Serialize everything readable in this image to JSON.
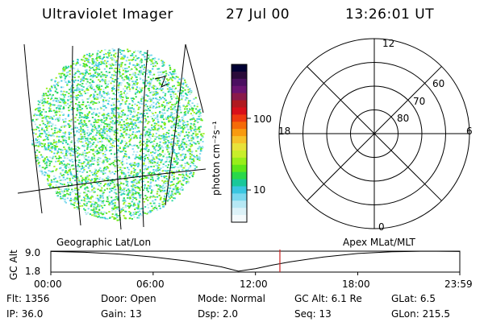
{
  "header": {
    "instrument": "Ultraviolet Imager",
    "date": "27 Jul 00",
    "time": "13:26:01 UT"
  },
  "colorbar": {
    "unit_label": "photon cm⁻²s⁻¹",
    "ticks": [
      "100",
      "10"
    ],
    "colors": [
      "#000033",
      "#2a0b3a",
      "#4b1060",
      "#6a1470",
      "#8a1a4a",
      "#b01a20",
      "#d8101a",
      "#ee3a10",
      "#f56a08",
      "#f89a10",
      "#f6c22a",
      "#e8e23a",
      "#c8ee2a",
      "#98ee1a",
      "#5ee61a",
      "#2ad84a",
      "#1ac89a",
      "#3ac6e0",
      "#7ad8ee",
      "#b6e8f4",
      "#dcf2f8",
      "#f4fafc"
    ]
  },
  "polar_plot": {
    "mlt_labels": {
      "top": "12",
      "left": "18",
      "right": "6",
      "bottom": "0"
    },
    "lat_labels": [
      "60",
      "70",
      "80"
    ]
  },
  "timeline": {
    "left_title": "Geographic Lat/Lon",
    "right_title": "Apex MLat/MLT",
    "ylabel": "GC Alt",
    "yticks": [
      "9.0",
      "1.8"
    ],
    "xticks": [
      "00:00",
      "06:00",
      "12:00",
      "18:00",
      "23:59"
    ]
  },
  "info": {
    "row1": [
      {
        "label": "Flt:",
        "value": "1356"
      },
      {
        "label": "Door:",
        "value": "Open"
      },
      {
        "label": "Mode:",
        "value": "Normal"
      },
      {
        "label": "GC Alt:",
        "value": "6.1 Re"
      },
      {
        "label": "GLat:",
        "value": "6.5"
      }
    ],
    "row2": [
      {
        "label": "IP:",
        "value": "36.0"
      },
      {
        "label": "Gain:",
        "value": "13"
      },
      {
        "label": "Dsp:",
        "value": "2.0"
      },
      {
        "label": "Seq:",
        "value": "13"
      },
      {
        "label": "GLon:",
        "value": "215.5"
      }
    ]
  },
  "chart_data": {
    "type": "line",
    "title": "",
    "xlabel": "",
    "ylabel": "GC Alt",
    "xlim": [
      "00:00",
      "23:59"
    ],
    "ylim": [
      1.8,
      9.0
    ],
    "x": [
      "00:00",
      "02:00",
      "04:00",
      "06:00",
      "08:00",
      "10:00",
      "11:00",
      "12:00",
      "13:00",
      "14:00",
      "16:00",
      "18:00",
      "20:00",
      "22:00",
      "23:59"
    ],
    "series": [
      {
        "values": [
          8.9,
          8.6,
          8.0,
          7.0,
          5.6,
          3.6,
          2.1,
          3.0,
          4.2,
          5.3,
          7.0,
          8.2,
          8.8,
          9.0,
          8.9
        ]
      }
    ],
    "current_time": "13:26",
    "current_time_color": "#cc2222"
  }
}
